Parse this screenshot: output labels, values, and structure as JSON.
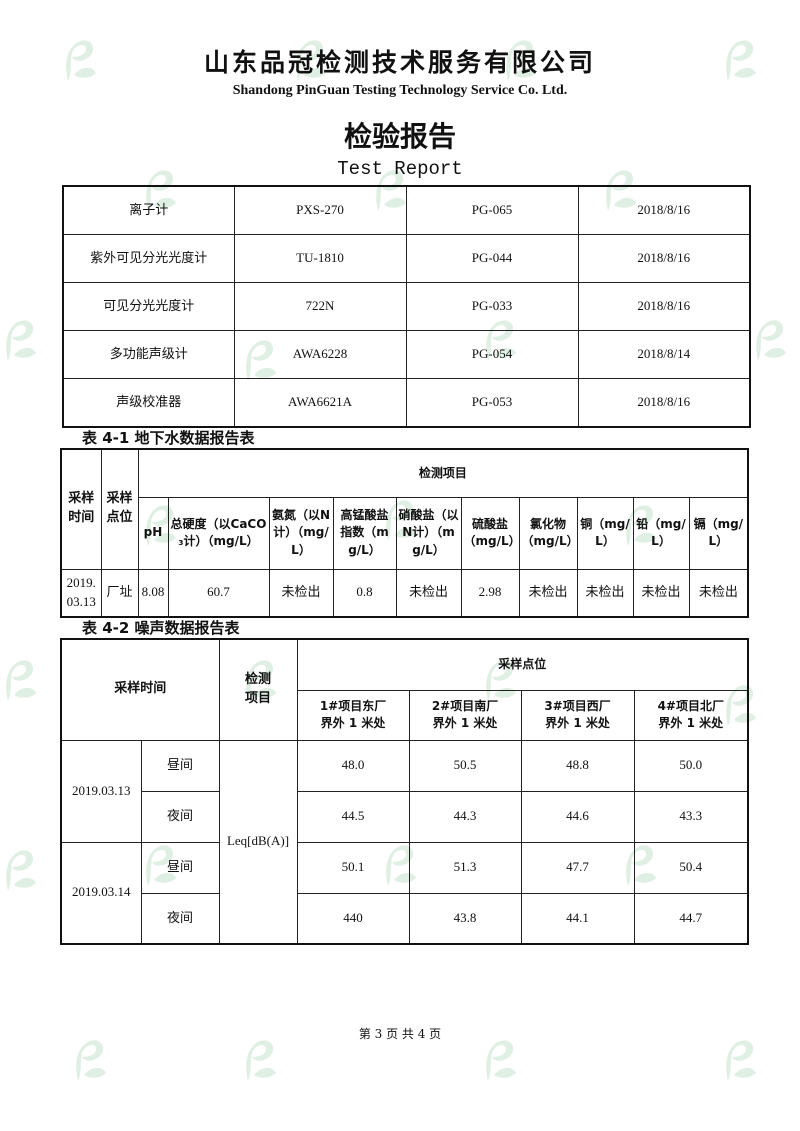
{
  "header": {
    "company_cn": "山东品冠检测技术服务有限公司",
    "company_en": "Shandong PinGuan Testing Technology Service Co. Ltd.",
    "title_cn": "检验报告",
    "title_en": "Test Report",
    "watermark_color": "#5aa86a"
  },
  "equipment": [
    [
      "离子计",
      "PXS-270",
      "PG-065",
      "2018/8/16"
    ],
    [
      "紫外可见分光光度计",
      "TU-1810",
      "PG-044",
      "2018/8/16"
    ],
    [
      "可见分光光度计",
      "722N",
      "PG-033",
      "2018/8/16"
    ],
    [
      "多功能声级计",
      "AWA6228",
      "PG-054",
      "2018/8/14"
    ],
    [
      "声级校准器",
      "AWA6621A",
      "PG-053",
      "2018/8/16"
    ]
  ],
  "table1": {
    "caption": "表 4-1  地下水数据报告表",
    "col_time": "采样时间",
    "col_site": "采样点位",
    "group": "检测项目",
    "items": [
      "pH",
      "总硬度（以CaCO₃计）（mg/L）",
      "氨氮（以N计）（mg/L）",
      "高锰酸盐指数（mg/L）",
      "硝酸盐（以N计）（mg/L）",
      "硫酸盐（mg/L）",
      "氯化物（mg/L）",
      "铜（mg/L）",
      "铅（mg/L）",
      "镉（mg/L）"
    ],
    "row": {
      "time": "2019.03.13",
      "site": "厂址",
      "values": [
        "8.08",
        "60.7",
        "未检出",
        "0.8",
        "未检出",
        "2.98",
        "未检出",
        "未检出",
        "未检出",
        "未检出"
      ]
    }
  },
  "table2": {
    "caption": "表 4-2 噪声数据报告表",
    "col_time": "采样时间",
    "col_item": "检测项目",
    "group": "采样点位",
    "sites": [
      "1#项目东厂界外 1 米处",
      "2#项目南厂界外 1 米处",
      "3#项目西厂界外 1 米处",
      "4#项目北厂界外 1 米处"
    ],
    "item": "Leq[dB(A)]",
    "dates": [
      "2019.03.13",
      "2019.03.14"
    ],
    "rows": [
      {
        "period": "昼间",
        "values": [
          "48.0",
          "50.5",
          "48.8",
          "50.0"
        ]
      },
      {
        "period": "夜间",
        "values": [
          "44.5",
          "44.3",
          "44.6",
          "43.3"
        ]
      },
      {
        "period": "昼间",
        "values": [
          "50.1",
          "51.3",
          "47.7",
          "50.4"
        ]
      },
      {
        "period": "夜间",
        "values": [
          "440",
          "43.8",
          "44.1",
          "44.7"
        ]
      }
    ]
  },
  "footer": {
    "page": "第 3 页 共 4 页"
  }
}
